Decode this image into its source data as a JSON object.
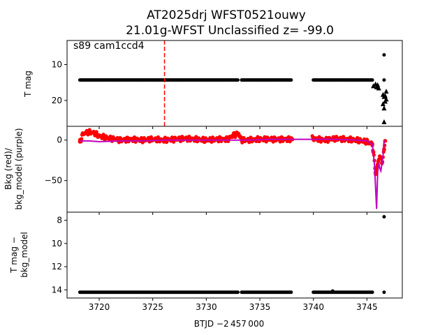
{
  "title_line1": "AT2025drj  WFST0521ouwy",
  "title_line2": "21.01g-WFST Unclassified z= -99.0",
  "annotation": "s89 cam1ccd4",
  "xlabel": "BTJD −2 457 000",
  "chart_data": [
    {
      "type": "scatter",
      "panel": "top",
      "ylabel": "T mag",
      "y_inverted": true,
      "xlim": [
        3717.0,
        3748.3
      ],
      "ylim": [
        3.3,
        27.2
      ],
      "yticks": [
        10,
        20
      ],
      "ytick_labels": [
        "10",
        "20"
      ],
      "vline_x": 3726.1,
      "segments": [
        {
          "x_start": 3718.2,
          "x_end": 3733.0,
          "y": 14.3
        },
        {
          "x_start": 3733.3,
          "x_end": 3738.0,
          "y": 14.3
        },
        {
          "x_start": 3740.0,
          "x_end": 3745.5,
          "y": 14.3
        }
      ],
      "points": [
        {
          "x": 3746.6,
          "y": 7.3
        },
        {
          "x": 3746.6,
          "y": 14.3
        }
      ],
      "upper_limits": [
        {
          "x": 3745.6,
          "y": 16.0
        },
        {
          "x": 3745.8,
          "y": 15.5
        },
        {
          "x": 3745.9,
          "y": 16.3
        },
        {
          "x": 3746.0,
          "y": 15.7
        },
        {
          "x": 3746.1,
          "y": 16.6
        },
        {
          "x": 3746.5,
          "y": 18.4
        },
        {
          "x": 3746.6,
          "y": 19.0
        },
        {
          "x": 3746.7,
          "y": 18.7
        },
        {
          "x": 3746.8,
          "y": 17.5
        },
        {
          "x": 3746.5,
          "y": 21.0
        },
        {
          "x": 3746.6,
          "y": 22.2
        },
        {
          "x": 3746.7,
          "y": 20.3
        },
        {
          "x": 3746.8,
          "y": 19.7
        },
        {
          "x": 3746.6,
          "y": 26.0
        }
      ]
    },
    {
      "type": "line",
      "panel": "middle",
      "ylabel_line1": "Bkg (red)/",
      "ylabel_line2": "bkg_model (purple)",
      "xlim": [
        3717.0,
        3748.3
      ],
      "ylim": [
        -89,
        17
      ],
      "yticks": [
        0,
        -50
      ],
      "ytick_labels": [
        "0",
        "−50"
      ],
      "series": [
        {
          "name": "Bkg",
          "color": "#ff0000",
          "x": [
            3718.2,
            3718.5,
            3719.0,
            3719.5,
            3720.0,
            3721.0,
            3722.0,
            3723.0,
            3724.0,
            3725.0,
            3726.0,
            3727.0,
            3728.0,
            3729.0,
            3730.0,
            3731.0,
            3732.0,
            3732.5,
            3733.0,
            3733.3,
            3734.0,
            3735.0,
            3736.0,
            3737.0,
            3738.0,
            3740.0,
            3741.0,
            3742.0,
            3743.0,
            3744.0,
            3745.0,
            3745.5,
            3745.6,
            3745.8,
            3746.0,
            3746.2,
            3746.4,
            3746.6,
            3746.7
          ],
          "y": [
            -2,
            8,
            10,
            9,
            5,
            2,
            0,
            1,
            0,
            1,
            0,
            1,
            2,
            1,
            0,
            1,
            1,
            6,
            8,
            0,
            0,
            1,
            1,
            1,
            1,
            2,
            0,
            2,
            1,
            0,
            -2,
            -5,
            -15,
            -40,
            -30,
            -20,
            -28,
            -12,
            -1
          ]
        },
        {
          "name": "bkg_model",
          "color": "#bf00bf",
          "x": [
            3718.2,
            3719.0,
            3720.0,
            3722.0,
            3724.0,
            3726.0,
            3728.0,
            3730.0,
            3732.0,
            3733.0,
            3734.0,
            3736.0,
            3738.0,
            3740.0,
            3742.0,
            3744.0,
            3745.0,
            3745.5,
            3745.7,
            3745.9,
            3746.0,
            3746.1,
            3746.2,
            3746.3,
            3746.5,
            3746.6
          ],
          "y": [
            -1,
            -1,
            -2,
            -1,
            -1,
            0,
            0,
            0,
            0,
            0,
            0,
            1,
            1,
            1,
            1,
            0,
            -1,
            -5,
            -30,
            -85,
            -40,
            -28,
            -35,
            -38,
            -20,
            0
          ]
        }
      ]
    },
    {
      "type": "scatter",
      "panel": "bottom",
      "ylabel_line1": "T mag −",
      "ylabel_line2": "bkg_model",
      "y_inverted": true,
      "xlim": [
        3717.0,
        3748.3
      ],
      "ylim": [
        7.3,
        14.7
      ],
      "yticks": [
        8,
        10,
        12,
        14
      ],
      "ytick_labels": [
        "8",
        "10",
        "12",
        "14"
      ],
      "xticks": [
        3720,
        3725,
        3730,
        3735,
        3740,
        3745
      ],
      "xtick_labels": [
        "3720",
        "3725",
        "3730",
        "3735",
        "3740",
        "3745"
      ],
      "segments": [
        {
          "x_start": 3718.2,
          "x_end": 3733.0,
          "y": 14.2
        },
        {
          "x_start": 3733.3,
          "x_end": 3738.0,
          "y": 14.2
        },
        {
          "x_start": 3740.0,
          "x_end": 3745.5,
          "y": 14.2
        }
      ],
      "points": [
        {
          "x": 3746.6,
          "y": 7.7
        },
        {
          "x": 3746.6,
          "y": 14.2
        },
        {
          "x": 3741.8,
          "y": 14.1
        }
      ]
    }
  ]
}
